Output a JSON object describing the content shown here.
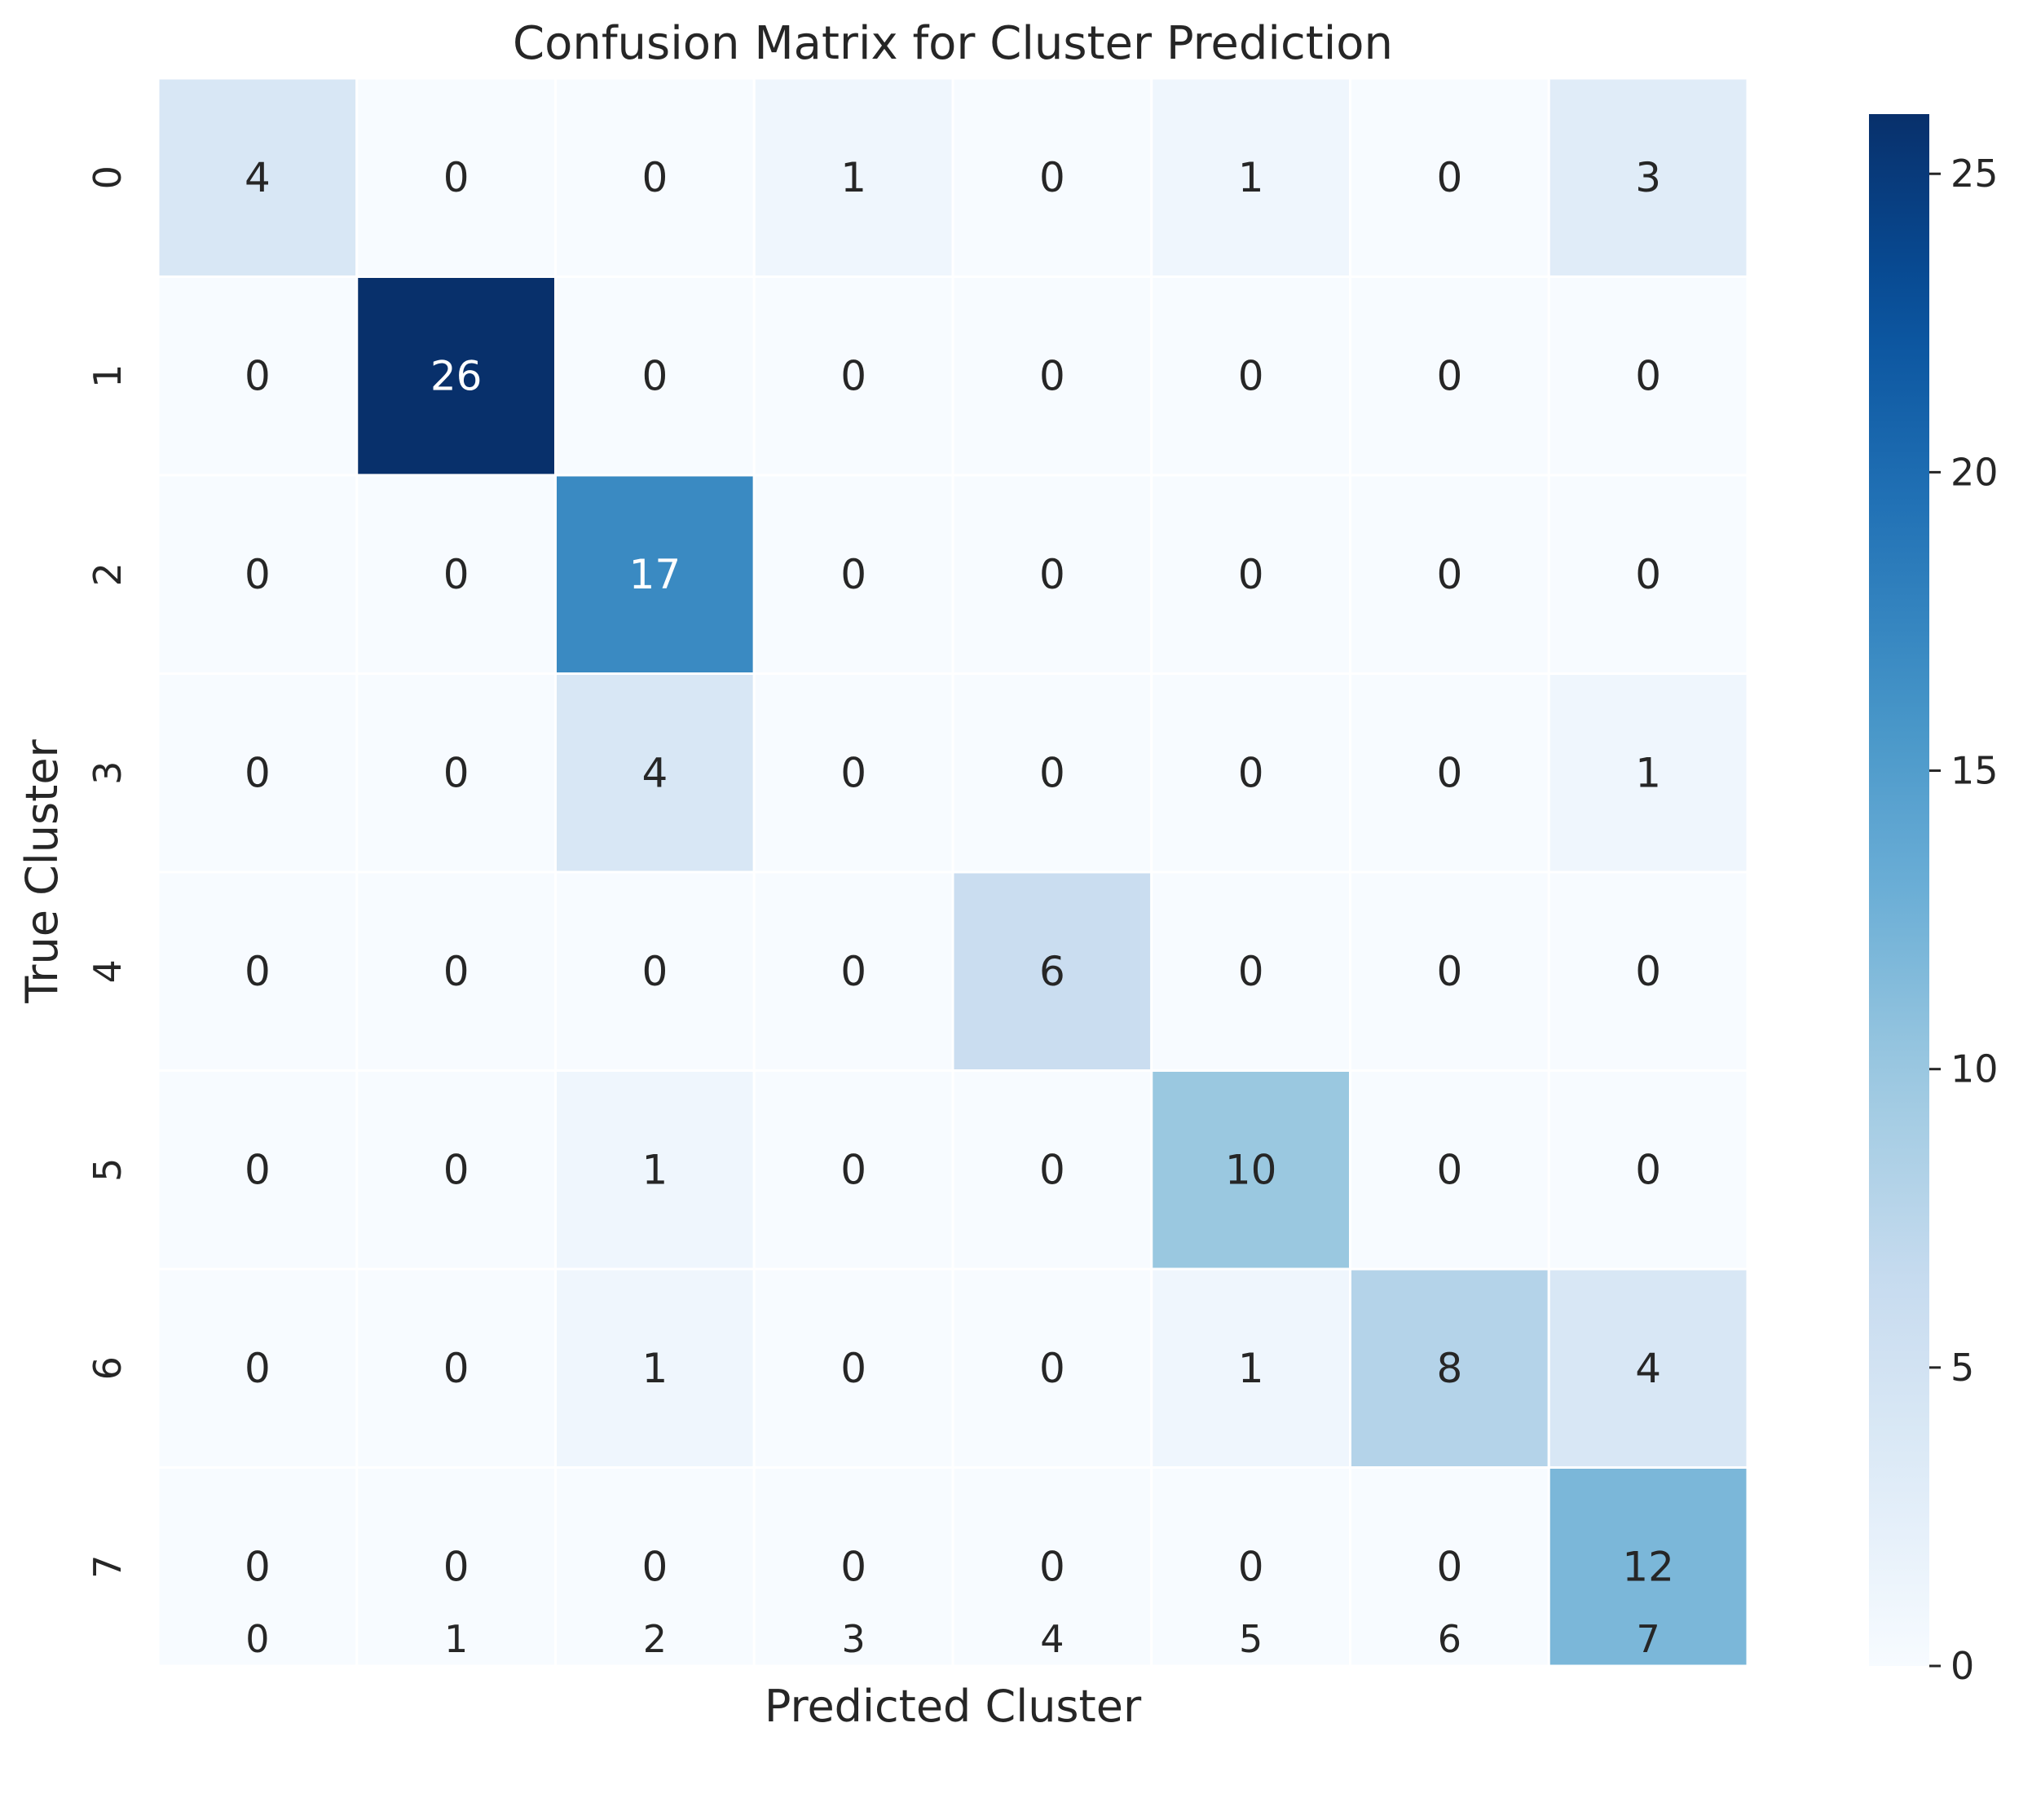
{
  "chart_data": {
    "type": "heatmap",
    "title": "Confusion Matrix for Cluster Prediction",
    "xlabel": "Predicted Cluster",
    "ylabel": "True Cluster",
    "x_categories": [
      "0",
      "1",
      "2",
      "3",
      "4",
      "5",
      "6",
      "7"
    ],
    "y_categories": [
      "0",
      "1",
      "2",
      "3",
      "4",
      "5",
      "6",
      "7"
    ],
    "values": [
      [
        4,
        0,
        0,
        1,
        0,
        1,
        0,
        3
      ],
      [
        0,
        26,
        0,
        0,
        0,
        0,
        0,
        0
      ],
      [
        0,
        0,
        17,
        0,
        0,
        0,
        0,
        0
      ],
      [
        0,
        0,
        4,
        0,
        0,
        0,
        0,
        1
      ],
      [
        0,
        0,
        0,
        0,
        6,
        0,
        0,
        0
      ],
      [
        0,
        0,
        1,
        0,
        0,
        10,
        0,
        0
      ],
      [
        0,
        0,
        1,
        0,
        0,
        1,
        8,
        4
      ],
      [
        0,
        0,
        0,
        0,
        0,
        0,
        0,
        12
      ]
    ],
    "colorscale": "Blues",
    "colorbar": {
      "min": 0,
      "max": 26,
      "ticks": [
        0,
        5,
        10,
        15,
        20,
        25
      ]
    },
    "annotated": true,
    "grid_lines": true
  }
}
